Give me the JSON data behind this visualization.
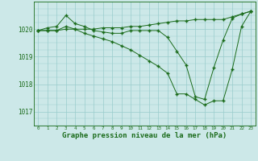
{
  "background_color": "#cce8e8",
  "grid_color": "#99cccc",
  "line_color": "#1a6b1a",
  "marker": "+",
  "xlabel": "Graphe pression niveau de la mer (hPa)",
  "xlabel_fontsize": 6.5,
  "xtick_labels": [
    "0",
    "1",
    "2",
    "3",
    "4",
    "5",
    "6",
    "7",
    "8",
    "9",
    "10",
    "11",
    "12",
    "13",
    "14",
    "15",
    "16",
    "17",
    "18",
    "19",
    "20",
    "21",
    "22",
    "23"
  ],
  "ylim": [
    1016.5,
    1021.0
  ],
  "yticks": [
    1017,
    1018,
    1019,
    1020
  ],
  "line1_x": [
    0,
    1,
    2,
    3,
    4,
    5,
    6,
    7,
    8,
    9,
    10,
    11,
    12,
    13,
    14,
    15,
    16,
    17,
    18,
    19,
    20,
    21,
    22,
    23
  ],
  "line1_y": [
    1019.95,
    1019.95,
    1019.95,
    1020.0,
    1020.0,
    1020.0,
    1020.0,
    1020.05,
    1020.05,
    1020.05,
    1020.1,
    1020.1,
    1020.15,
    1020.2,
    1020.25,
    1020.3,
    1020.3,
    1020.35,
    1020.35,
    1020.35,
    1020.35,
    1020.45,
    1020.55,
    1020.65
  ],
  "line2_x": [
    0,
    1,
    2,
    3,
    4,
    5,
    6,
    7,
    8,
    9,
    10,
    11,
    12,
    13,
    14,
    15,
    16,
    17,
    18,
    19,
    20,
    21,
    22,
    23
  ],
  "line2_y": [
    1019.95,
    1020.05,
    1020.1,
    1020.5,
    1020.2,
    1020.1,
    1019.95,
    1019.9,
    1019.85,
    1019.85,
    1019.95,
    1019.95,
    1019.95,
    1019.95,
    1019.7,
    1019.2,
    1018.7,
    1017.55,
    1017.45,
    1018.6,
    1019.6,
    1020.4,
    1020.55,
    1020.65
  ],
  "line3_x": [
    0,
    1,
    2,
    3,
    4,
    5,
    6,
    7,
    8,
    9,
    10,
    11,
    12,
    13,
    14,
    15,
    16,
    17,
    18,
    19,
    20,
    21,
    22,
    23
  ],
  "line3_y": [
    1019.95,
    1019.95,
    1019.95,
    1020.1,
    1020.0,
    1019.85,
    1019.75,
    1019.65,
    1019.55,
    1019.4,
    1019.25,
    1019.05,
    1018.85,
    1018.65,
    1018.4,
    1017.65,
    1017.65,
    1017.45,
    1017.25,
    1017.4,
    1017.4,
    1018.55,
    1020.1,
    1020.65
  ]
}
